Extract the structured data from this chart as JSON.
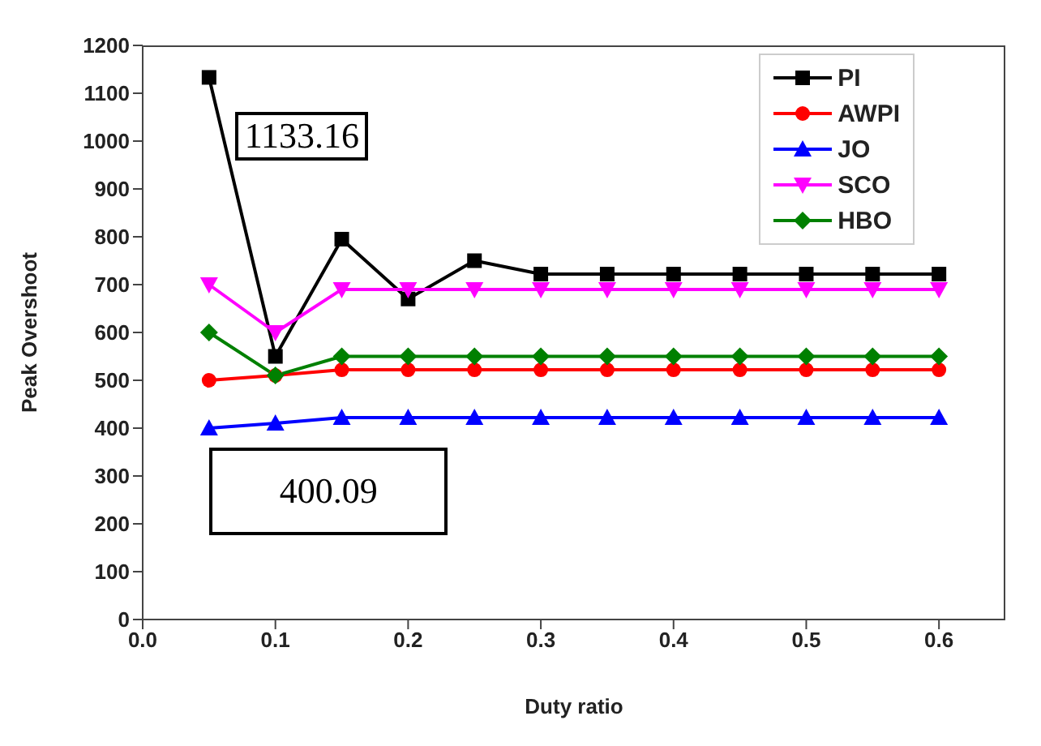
{
  "chart_data": {
    "type": "line",
    "xlabel": "Duty ratio",
    "ylabel": "Peak Overshoot",
    "x": [
      0.05,
      0.1,
      0.15,
      0.2,
      0.25,
      0.3,
      0.35,
      0.4,
      0.45,
      0.5,
      0.55,
      0.6
    ],
    "series": [
      {
        "name": "PI",
        "color": "#000000",
        "marker": "square",
        "values": [
          1133.16,
          550,
          795,
          670,
          750,
          722,
          722,
          722,
          722,
          722,
          722,
          722
        ]
      },
      {
        "name": "AWPI",
        "color": "#ff0000",
        "marker": "circle",
        "values": [
          500,
          510,
          522,
          522,
          522,
          522,
          522,
          522,
          522,
          522,
          522,
          522
        ]
      },
      {
        "name": "JO",
        "color": "#0000ff",
        "marker": "triangle",
        "values": [
          400.09,
          410,
          422,
          422,
          422,
          422,
          422,
          422,
          422,
          422,
          422,
          422
        ]
      },
      {
        "name": "SCO",
        "color": "#ff00ff",
        "marker": "triangle-down",
        "values": [
          700,
          600,
          690,
          690,
          690,
          690,
          690,
          690,
          690,
          690,
          690,
          690
        ]
      },
      {
        "name": "HBO",
        "color": "#008000",
        "marker": "diamond",
        "values": [
          600,
          510,
          550,
          550,
          550,
          550,
          550,
          550,
          550,
          550,
          550,
          550
        ]
      }
    ],
    "xlim": [
      0,
      0.65
    ],
    "xticks": [
      {
        "value": 0,
        "label": "0.0"
      },
      0.1,
      0.2,
      0.3,
      0.4,
      0.5,
      0.6
    ],
    "ylim": [
      0,
      1200
    ],
    "yticks": [
      0,
      100,
      200,
      300,
      400,
      500,
      600,
      700,
      800,
      900,
      1000,
      1100,
      1200
    ],
    "annotations": [
      "1133.16",
      "400.09"
    ],
    "legend": "top right",
    "grid": false,
    "line_style": "solid"
  }
}
